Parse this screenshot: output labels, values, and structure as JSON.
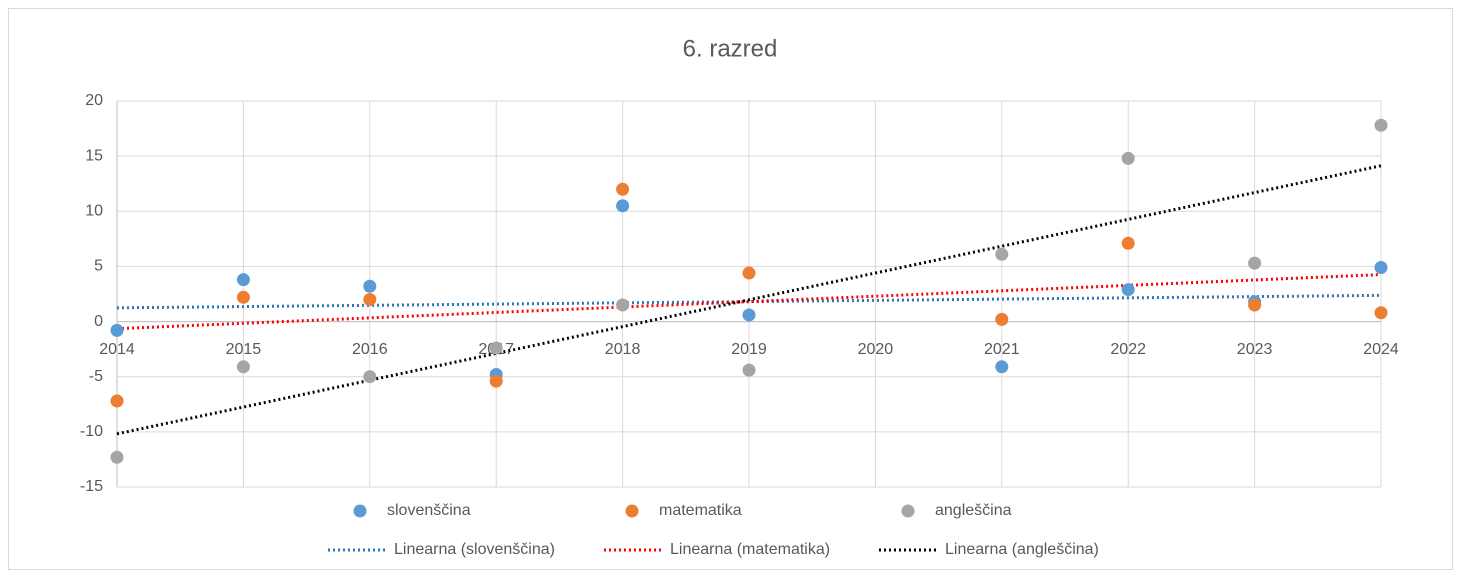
{
  "chart_data": {
    "type": "scatter",
    "title": "6. razred",
    "x": [
      2014,
      2015,
      2016,
      2017,
      2018,
      2019,
      2021,
      2022,
      2023,
      2024
    ],
    "series": [
      {
        "name": "slovenščina",
        "color": "#5b9bd5",
        "values": [
          -0.8,
          3.8,
          3.2,
          -4.8,
          10.5,
          0.6,
          -4.1,
          2.9,
          1.8,
          4.9
        ],
        "trendline": {
          "name": "Linearna (slovenščina)",
          "color": "#2e75b6"
        }
      },
      {
        "name": "matematika",
        "color": "#ed7d31",
        "values": [
          -7.2,
          2.2,
          2.0,
          -5.4,
          12.0,
          4.4,
          0.2,
          7.1,
          1.5,
          0.8
        ],
        "trendline": {
          "name": "Linearna (matematika)",
          "color": "#ff0000"
        }
      },
      {
        "name": "angleščina",
        "color": "#a5a5a5",
        "values": [
          -12.3,
          -4.1,
          -5.0,
          -2.4,
          1.5,
          -4.4,
          6.1,
          14.8,
          5.3,
          17.8
        ],
        "trendline": {
          "name": "Linearna (angleščina)",
          "color": "#000000"
        }
      }
    ],
    "xlim": [
      2014,
      2024
    ],
    "xticks": [
      2014,
      2015,
      2016,
      2017,
      2018,
      2019,
      2020,
      2021,
      2022,
      2023,
      2024
    ],
    "ylim": [
      -15,
      20
    ],
    "yticks": [
      -15,
      -10,
      -5,
      0,
      5,
      10,
      15,
      20
    ],
    "grid": true,
    "legend": "bottom"
  }
}
